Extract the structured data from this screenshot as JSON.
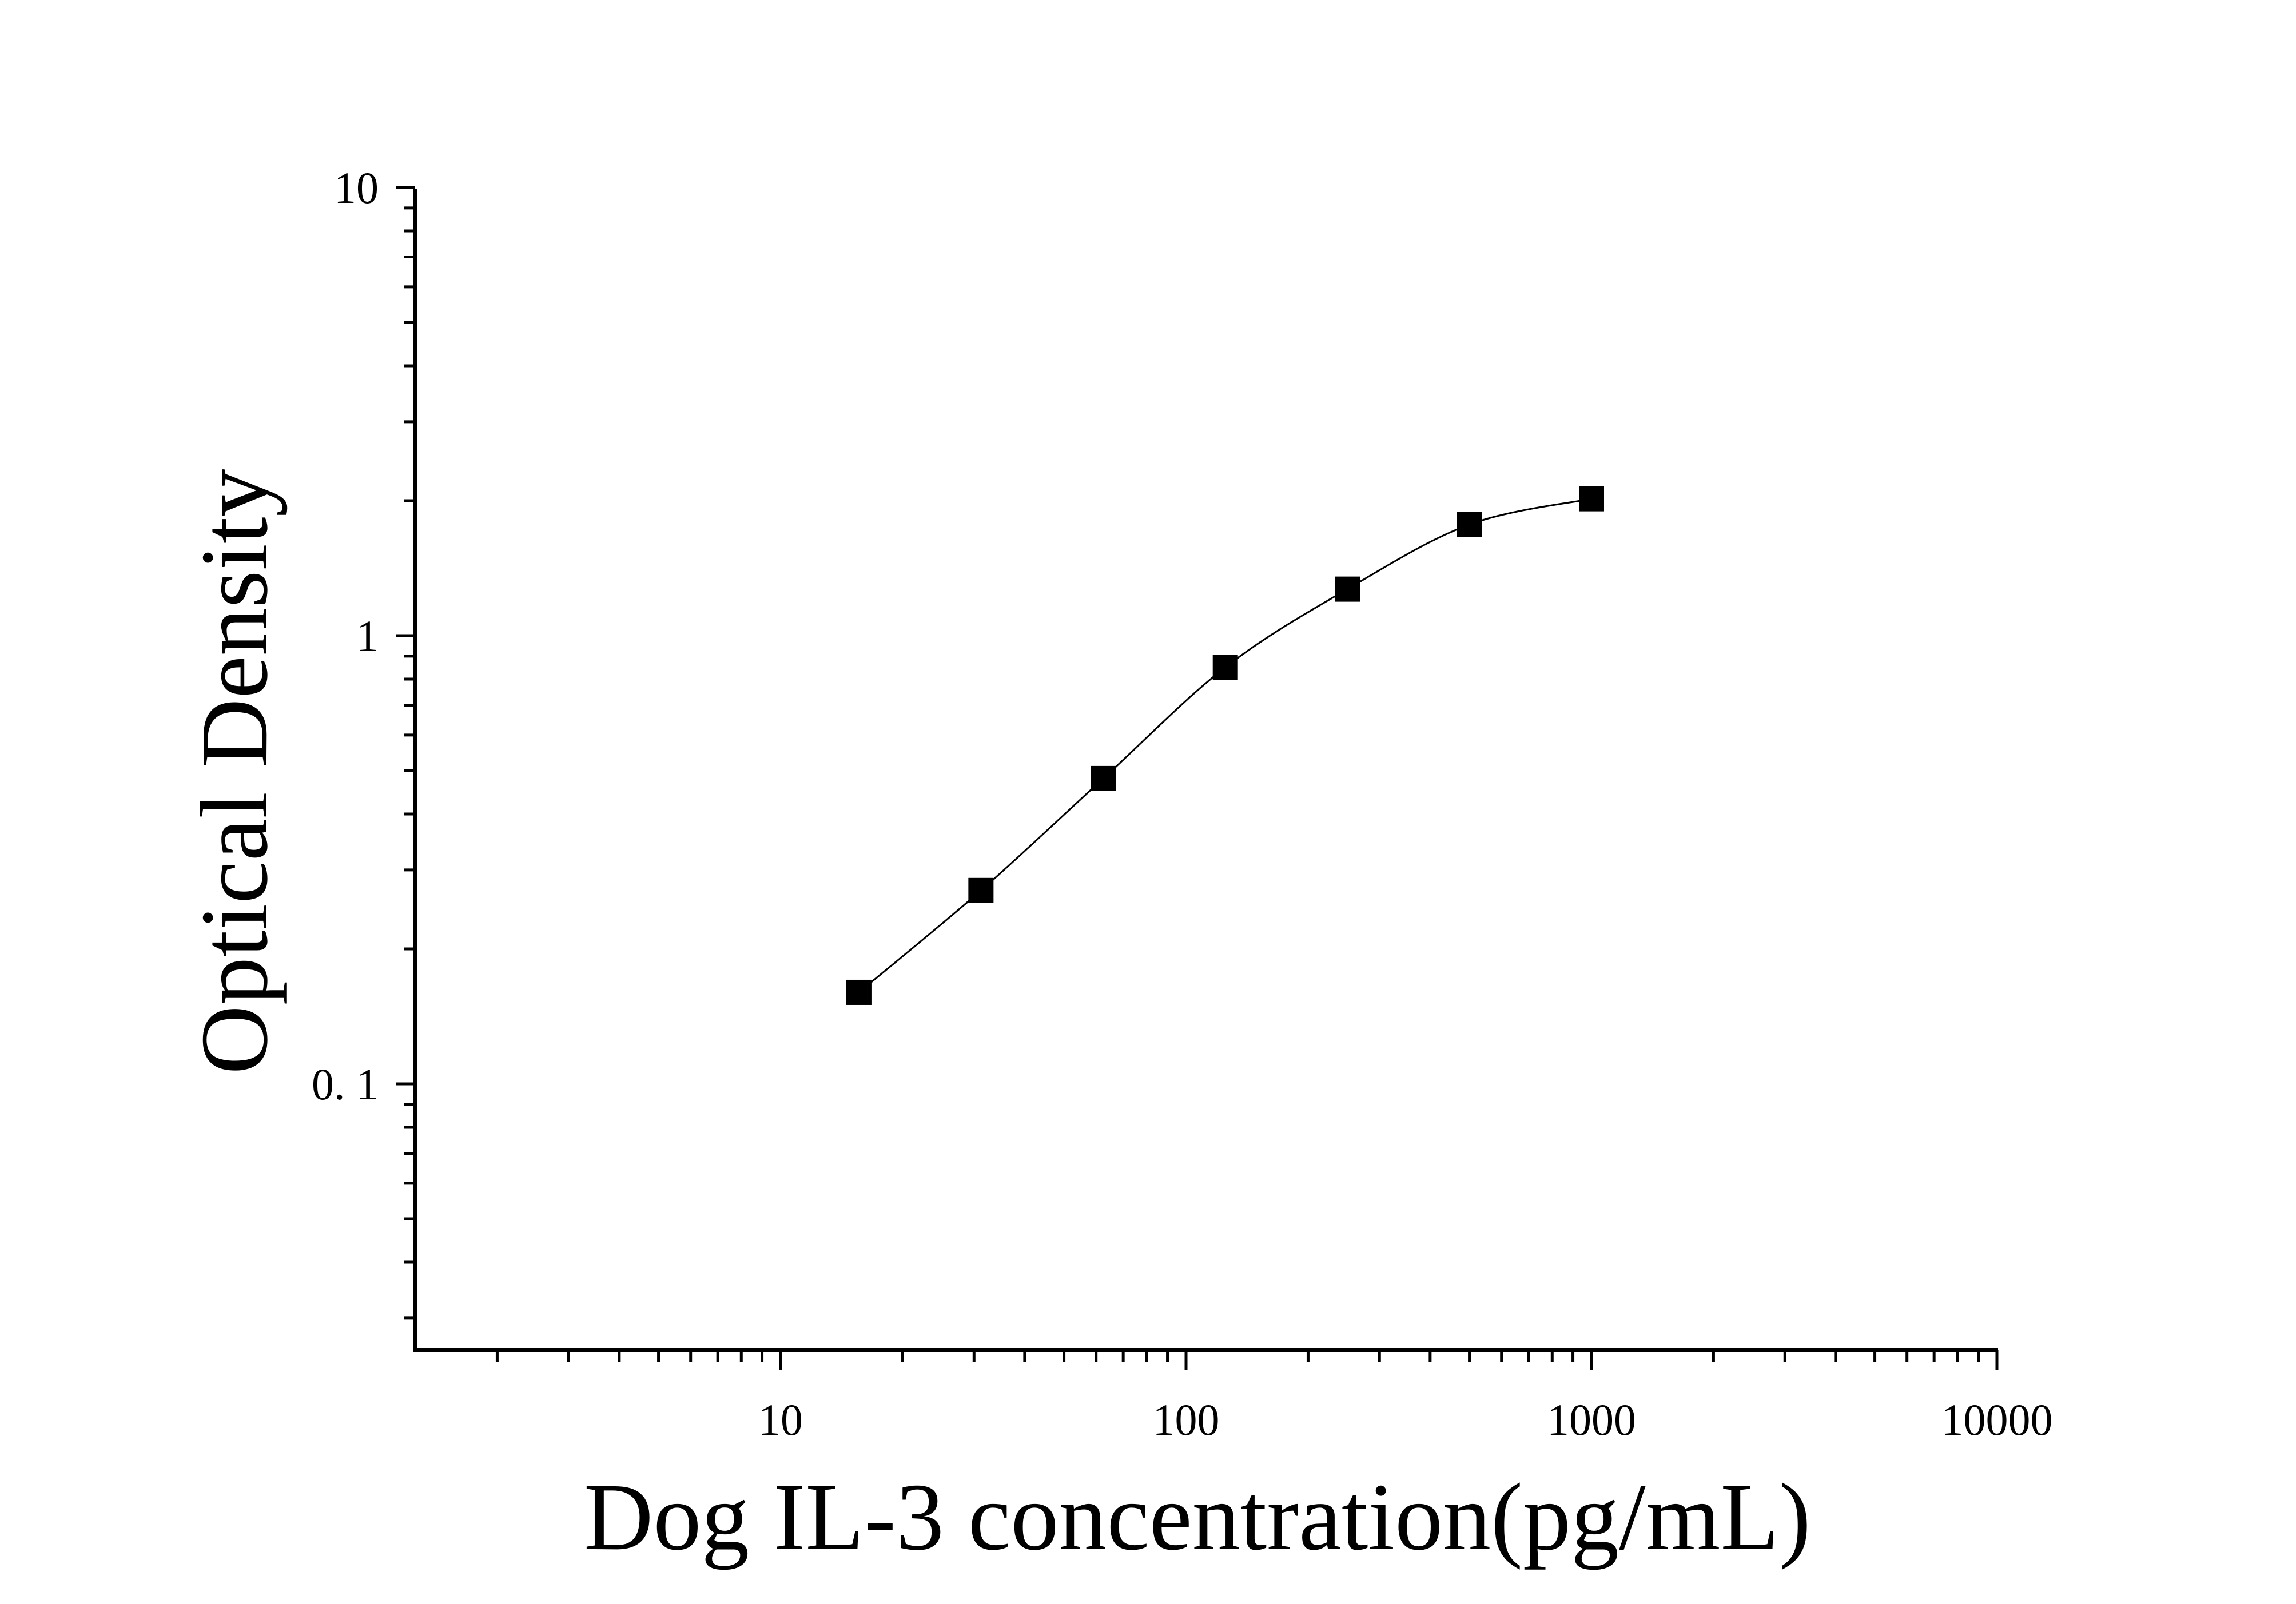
{
  "chart_data": {
    "type": "scatter",
    "title": "",
    "xlabel": "Dog IL-3 concentration(pg/mL)",
    "ylabel": "Optical Density",
    "x_scale": "log",
    "y_scale": "log",
    "xlim": [
      1.3,
      10000
    ],
    "ylim": [
      0.026,
      10
    ],
    "x_ticks": [
      {
        "value": 10,
        "label": "10"
      },
      {
        "value": 100,
        "label": "100"
      },
      {
        "value": 1000,
        "label": "1000"
      },
      {
        "value": 10000,
        "label": "10000"
      }
    ],
    "y_ticks": [
      {
        "value": 0.1,
        "label": "0. 1"
      },
      {
        "value": 1,
        "label": "1"
      },
      {
        "value": 10,
        "label": "10"
      }
    ],
    "grid": false,
    "legend": "none",
    "series": [
      {
        "marker": "square",
        "color": "#000000",
        "fit_curve": true,
        "points": [
          {
            "x": 15.6,
            "y": 0.16
          },
          {
            "x": 31.2,
            "y": 0.27
          },
          {
            "x": 62.5,
            "y": 0.48
          },
          {
            "x": 125,
            "y": 0.85
          },
          {
            "x": 250,
            "y": 1.27
          },
          {
            "x": 500,
            "y": 1.77
          },
          {
            "x": 1000,
            "y": 2.02
          }
        ]
      }
    ]
  }
}
